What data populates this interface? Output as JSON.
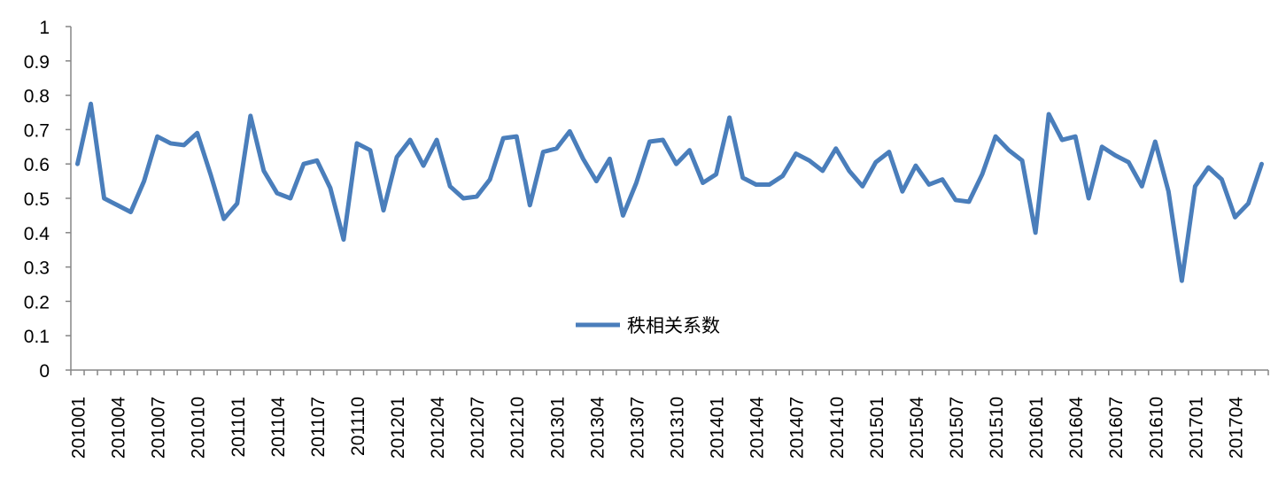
{
  "chart_data": {
    "type": "line",
    "categories": [
      "201001",
      null,
      null,
      "201004",
      null,
      null,
      "201007",
      null,
      null,
      "201010",
      null,
      null,
      "201101",
      null,
      null,
      "201104",
      null,
      null,
      "201107",
      null,
      null,
      "201110",
      null,
      null,
      "201201",
      null,
      null,
      "201204",
      null,
      null,
      "201207",
      null,
      null,
      "201210",
      null,
      null,
      "201301",
      null,
      null,
      "201304",
      null,
      null,
      "201307",
      null,
      null,
      "201310",
      null,
      null,
      "201401",
      null,
      null,
      "201404",
      null,
      null,
      "201407",
      null,
      null,
      "201410",
      null,
      null,
      "201501",
      null,
      null,
      "201504",
      null,
      null,
      "201507",
      null,
      null,
      "201510",
      null,
      null,
      "201601",
      null,
      null,
      "201604",
      null,
      null,
      "201607",
      null,
      null,
      "201610",
      null,
      null,
      "201701",
      null,
      null,
      "201704",
      null,
      null
    ],
    "series": [
      {
        "name": "秩相关系数",
        "color": "#4a7ebb",
        "values": [
          0.6,
          0.775,
          0.5,
          0.48,
          0.46,
          0.55,
          0.68,
          0.66,
          0.655,
          0.69,
          0.57,
          0.44,
          0.485,
          0.74,
          0.58,
          0.515,
          0.5,
          0.6,
          0.61,
          0.53,
          0.38,
          0.66,
          0.64,
          0.465,
          0.62,
          0.67,
          0.595,
          0.67,
          0.535,
          0.5,
          0.505,
          0.555,
          0.675,
          0.68,
          0.48,
          0.635,
          0.645,
          0.695,
          0.615,
          0.55,
          0.615,
          0.45,
          0.545,
          0.665,
          0.67,
          0.6,
          0.64,
          0.545,
          0.57,
          0.735,
          0.56,
          0.54,
          0.54,
          0.565,
          0.63,
          0.61,
          0.58,
          0.645,
          0.58,
          0.535,
          0.605,
          0.635,
          0.52,
          0.595,
          0.54,
          0.555,
          0.495,
          0.49,
          0.57,
          0.68,
          0.64,
          0.61,
          0.4,
          0.745,
          0.67,
          0.68,
          0.5,
          0.65,
          0.625,
          0.605,
          0.535,
          0.665,
          0.52,
          0.26,
          0.535,
          0.59,
          0.555,
          0.445,
          0.485,
          0.6
        ]
      }
    ],
    "ylim": [
      0,
      1
    ],
    "yticks": [
      0,
      0.1,
      0.2,
      0.3,
      0.4,
      0.5,
      0.6,
      0.7,
      0.8,
      0.9,
      1
    ],
    "grid": false,
    "legend": "center"
  }
}
